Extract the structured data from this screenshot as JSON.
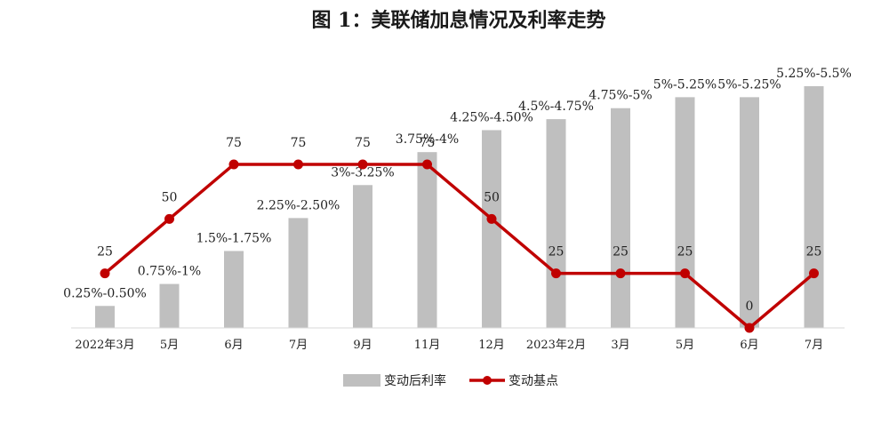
{
  "chart_data": {
    "type": "bar+line",
    "title": "图 1：美联储加息情况及利率走势",
    "categories": [
      "2022年3月",
      "5月",
      "6月",
      "7月",
      "9月",
      "11月",
      "12月",
      "2023年2月",
      "3月",
      "5月",
      "6月",
      "7月"
    ],
    "series": [
      {
        "name": "变动后利率",
        "kind": "bar",
        "color": "#bfbfbf",
        "labels": [
          "0.25%-0.50%",
          "0.75%-1%",
          "1.5%-1.75%",
          "2.25%-2.50%",
          "3%-3.25%",
          "3.75%-4%",
          "4.25%-4.50%",
          "4.5%-4.75%",
          "4.75%-5%",
          "5%-5.25%",
          "5%-5.25%",
          "5.25%-5.5%"
        ],
        "values": [
          0.5,
          1.0,
          1.75,
          2.5,
          3.25,
          4.0,
          4.5,
          4.75,
          5.0,
          5.25,
          5.25,
          5.5
        ]
      },
      {
        "name": "变动基点",
        "kind": "line",
        "color": "#c00000",
        "values": [
          25,
          50,
          75,
          75,
          75,
          75,
          50,
          25,
          25,
          25,
          0,
          25
        ]
      }
    ],
    "legend_position": "bottom",
    "grid": false
  }
}
